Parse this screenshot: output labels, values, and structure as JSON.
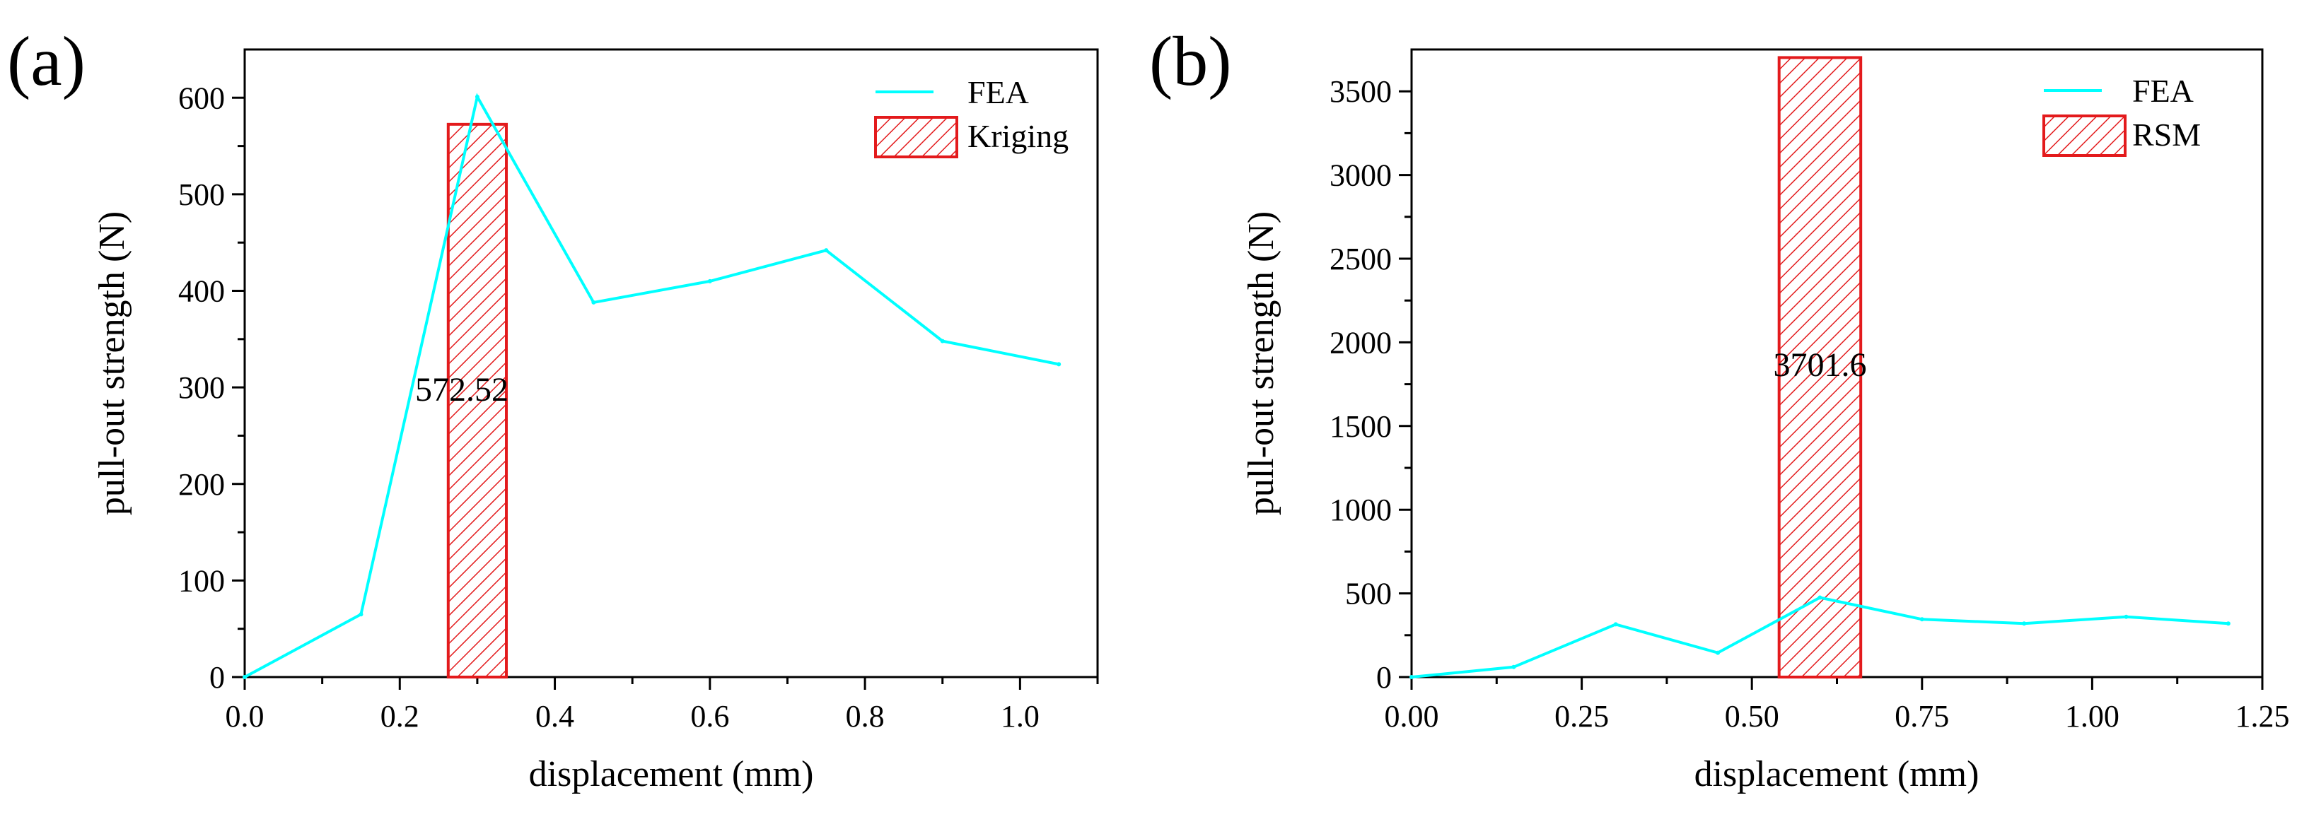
{
  "colors": {
    "fea_line": "#00FFFF",
    "bar_stroke": "#E31A1C",
    "axis": "#000000",
    "background": "#FFFFFF"
  },
  "chart_data": [
    {
      "type": "bar+line",
      "panel_label": "(a)",
      "xlabel": "displacement (mm)",
      "ylabel": "pull-out strength (N)",
      "xlim": [
        0.0,
        1.1
      ],
      "ylim": [
        0,
        650
      ],
      "xticks": [
        0.0,
        0.2,
        0.4,
        0.6,
        0.8,
        1.0
      ],
      "xtick_labels": [
        "0.0",
        "0.2",
        "0.4",
        "0.6",
        "0.8",
        "1.0"
      ],
      "yticks": [
        0,
        100,
        200,
        300,
        400,
        500,
        600
      ],
      "ytick_labels": [
        "0",
        "100",
        "200",
        "300",
        "400",
        "500",
        "600"
      ],
      "legend_position": "top-right",
      "series": [
        {
          "name": "FEA",
          "kind": "line",
          "x": [
            0.0,
            0.15,
            0.3,
            0.45,
            0.6,
            0.75,
            0.9,
            1.05
          ],
          "y": [
            0,
            65,
            601,
            388,
            410,
            442,
            348,
            324
          ]
        },
        {
          "name": "Kriging",
          "kind": "bar",
          "x": 0.3,
          "width": 0.075,
          "value": 572.52,
          "label": "572.52"
        }
      ]
    },
    {
      "type": "bar+line",
      "panel_label": "(b)",
      "xlabel": "displacement (mm)",
      "ylabel": "pull-out strength (N)",
      "xlim": [
        0.0,
        1.25
      ],
      "ylim": [
        0,
        3750
      ],
      "xticks": [
        0.0,
        0.25,
        0.5,
        0.75,
        1.0,
        1.25
      ],
      "xtick_labels": [
        "0.00",
        "0.25",
        "0.50",
        "0.75",
        "1.00",
        "1.25"
      ],
      "yticks": [
        0,
        500,
        1000,
        1500,
        2000,
        2500,
        3000,
        3500
      ],
      "ytick_labels": [
        "0",
        "500",
        "1000",
        "1500",
        "2000",
        "2500",
        "3000",
        "3500"
      ],
      "legend_position": "top-right",
      "series": [
        {
          "name": "FEA",
          "kind": "line",
          "x": [
            0.0,
            0.15,
            0.3,
            0.45,
            0.6,
            0.75,
            0.9,
            1.05,
            1.2
          ],
          "y": [
            0,
            60,
            315,
            145,
            475,
            345,
            320,
            360,
            320
          ]
        },
        {
          "name": "RSM",
          "kind": "bar",
          "x": 0.6,
          "width": 0.12,
          "value": 3701.6,
          "label": "3701.6"
        }
      ]
    }
  ]
}
